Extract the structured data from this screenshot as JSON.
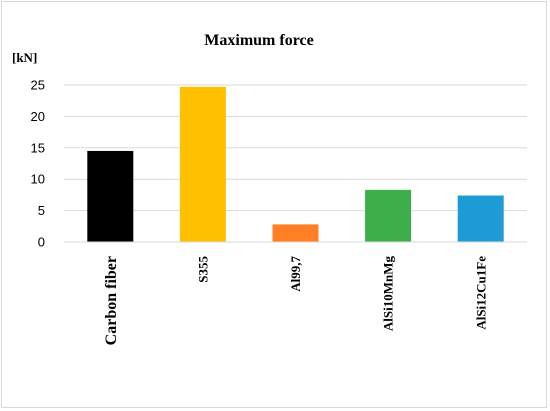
{
  "chart_data": {
    "type": "bar",
    "title": "Maximum  force",
    "ylabel": "[kN]",
    "xlabel": "",
    "categories": [
      "Carbon fiber",
      "S355",
      "Al99,7",
      "AlSi10MnMg",
      "AlSi12Cu1Fe"
    ],
    "values": [
      14.5,
      24.7,
      2.8,
      8.3,
      7.4
    ],
    "colors": [
      "#000000",
      "#ffc000",
      "#ff7f27",
      "#3dae49",
      "#1e9ad6"
    ],
    "yticks": [
      0,
      5,
      10,
      15,
      20,
      25
    ],
    "ylim": [
      0,
      25
    ],
    "grid": true,
    "legend": "none"
  }
}
